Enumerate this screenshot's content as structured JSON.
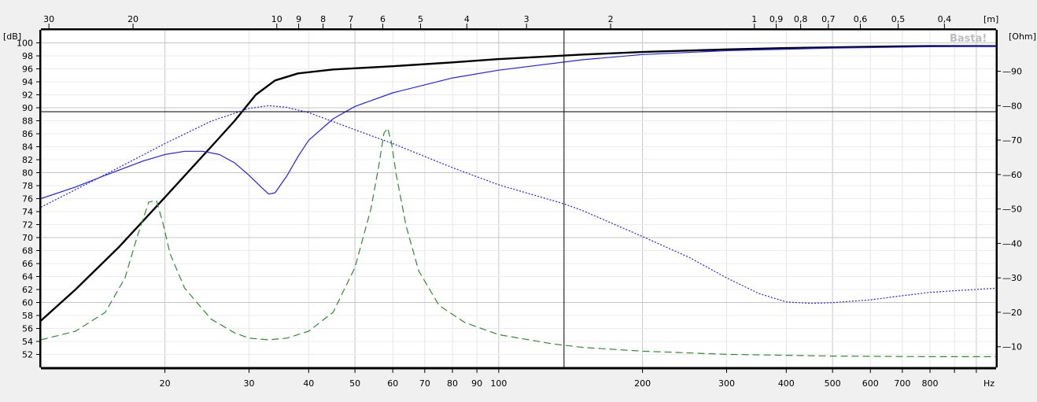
{
  "chart_data": {
    "type": "line",
    "title": "",
    "watermark": "Basta!",
    "x_axis": {
      "scale": "log",
      "range": [
        11,
        1100
      ],
      "unit_label": "Hz",
      "tick_labels": [
        20,
        30,
        40,
        50,
        60,
        70,
        80,
        90,
        100,
        200,
        300,
        400,
        500,
        600,
        700,
        800
      ]
    },
    "top_axis": {
      "quantity": "wavelength",
      "unit_label": "[m]",
      "tick_labels": [
        "30",
        "20",
        "10",
        "9",
        "8",
        "7",
        "6",
        "5",
        "4",
        "3",
        "2",
        "1",
        "0,9",
        "0,8",
        "0,7",
        "0,6",
        "0,5",
        "0,4"
      ],
      "tick_values": [
        30,
        20,
        10,
        9,
        8,
        7,
        6,
        5,
        4,
        3,
        2,
        1,
        0.9,
        0.8,
        0.7,
        0.6,
        0.5,
        0.4
      ]
    },
    "y_left": {
      "unit_label": "[dB]",
      "range": [
        50,
        102
      ],
      "tick_labels": [
        52,
        54,
        56,
        58,
        60,
        62,
        64,
        66,
        68,
        70,
        72,
        74,
        76,
        78,
        80,
        82,
        84,
        86,
        88,
        90,
        92,
        94,
        96,
        98,
        100
      ]
    },
    "y_right": {
      "unit_label": "[Ohm]",
      "range": [
        4,
        102
      ],
      "tick_labels": [
        10,
        20,
        30,
        40,
        50,
        60,
        70,
        80,
        90
      ]
    },
    "grid": true,
    "cursor": {
      "x": 137,
      "y": 89.4
    },
    "series": [
      {
        "axis": "left",
        "color": "#000000",
        "style": "solid-thick",
        "points": [
          [
            11,
            57.2
          ],
          [
            13,
            62
          ],
          [
            16,
            68.5
          ],
          [
            20,
            76.2
          ],
          [
            25,
            84
          ],
          [
            28,
            88
          ],
          [
            31,
            92
          ],
          [
            34,
            94.2
          ],
          [
            38,
            95.3
          ],
          [
            45,
            95.9
          ],
          [
            60,
            96.4
          ],
          [
            80,
            97
          ],
          [
            100,
            97.5
          ],
          [
            150,
            98.2
          ],
          [
            200,
            98.6
          ],
          [
            300,
            99
          ],
          [
            400,
            99.2
          ],
          [
            600,
            99.4
          ],
          [
            800,
            99.5
          ],
          [
            1100,
            99.5
          ]
        ]
      },
      {
        "axis": "left",
        "color": "#2020ff",
        "style": "solid",
        "points": [
          [
            11,
            76
          ],
          [
            13,
            77.8
          ],
          [
            15,
            79.6
          ],
          [
            18,
            81.8
          ],
          [
            20,
            82.8
          ],
          [
            22,
            83.3
          ],
          [
            24,
            83.3
          ],
          [
            26,
            82.8
          ],
          [
            28,
            81.5
          ],
          [
            30,
            79.6
          ],
          [
            32,
            77.6
          ],
          [
            33,
            76.7
          ],
          [
            34,
            76.9
          ],
          [
            36,
            79.5
          ],
          [
            38,
            82.5
          ],
          [
            40,
            85
          ],
          [
            45,
            88.3
          ],
          [
            50,
            90.2
          ],
          [
            60,
            92.3
          ],
          [
            80,
            94.6
          ],
          [
            100,
            95.8
          ],
          [
            150,
            97.4
          ],
          [
            200,
            98.2
          ],
          [
            300,
            98.8
          ],
          [
            500,
            99.2
          ],
          [
            800,
            99.4
          ],
          [
            1100,
            99.5
          ]
        ]
      },
      {
        "axis": "right",
        "color": "#2020ff",
        "style": "dotted",
        "points": [
          [
            11,
            50.5
          ],
          [
            15,
            60
          ],
          [
            20,
            69
          ],
          [
            25,
            75.5
          ],
          [
            30,
            79.2
          ],
          [
            33,
            80
          ],
          [
            36,
            79.5
          ],
          [
            40,
            78
          ],
          [
            50,
            73
          ],
          [
            60,
            69
          ],
          [
            80,
            62
          ],
          [
            100,
            57
          ],
          [
            137,
            51.5
          ],
          [
            150,
            49.5
          ],
          [
            200,
            42
          ],
          [
            250,
            36
          ],
          [
            300,
            30
          ],
          [
            350,
            25.5
          ],
          [
            400,
            23
          ],
          [
            450,
            22.6
          ],
          [
            500,
            22.8
          ],
          [
            600,
            23.6
          ],
          [
            700,
            24.8
          ],
          [
            800,
            25.8
          ],
          [
            1100,
            27
          ]
        ]
      },
      {
        "axis": "right",
        "color": "#2e8b2e",
        "style": "dashed",
        "points": [
          [
            11,
            12
          ],
          [
            13,
            14.5
          ],
          [
            15,
            20
          ],
          [
            16.5,
            30
          ],
          [
            17.5,
            42
          ],
          [
            18.5,
            52
          ],
          [
            19.2,
            52.5
          ],
          [
            19.8,
            46
          ],
          [
            20.5,
            37
          ],
          [
            22,
            27
          ],
          [
            25,
            18
          ],
          [
            28,
            14
          ],
          [
            30,
            12.5
          ],
          [
            33,
            12
          ],
          [
            36,
            12.5
          ],
          [
            40,
            14.5
          ],
          [
            45,
            20
          ],
          [
            50,
            33
          ],
          [
            54,
            50
          ],
          [
            56,
            62
          ],
          [
            57.5,
            72
          ],
          [
            58.5,
            73.5
          ],
          [
            59.5,
            70
          ],
          [
            61,
            60
          ],
          [
            64,
            45
          ],
          [
            68,
            32
          ],
          [
            75,
            22
          ],
          [
            85,
            17
          ],
          [
            100,
            13.5
          ],
          [
            130,
            10.8
          ],
          [
            150,
            9.8
          ],
          [
            200,
            8.7
          ],
          [
            300,
            7.8
          ],
          [
            500,
            7.3
          ],
          [
            800,
            7.1
          ],
          [
            1100,
            7.1
          ]
        ]
      }
    ]
  }
}
